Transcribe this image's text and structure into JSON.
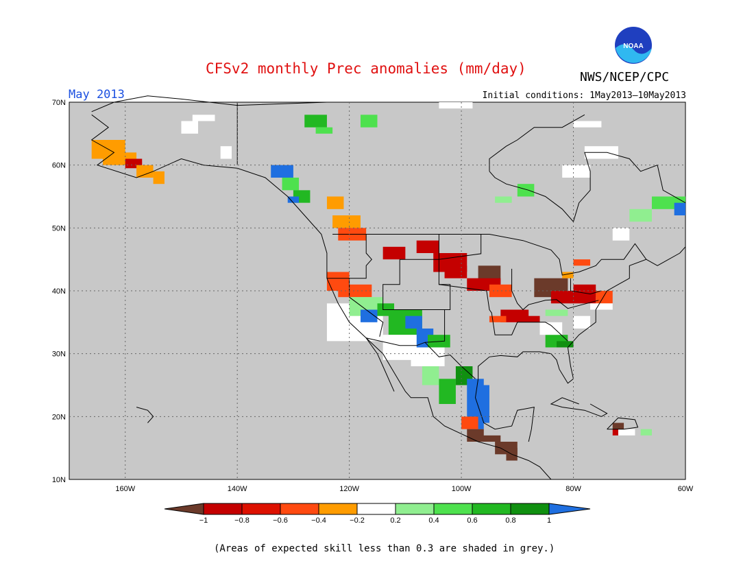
{
  "header": {
    "title": "CFSv2 monthly Prec anomalies (mm/day)",
    "agency": "NWS/NCEP/CPC",
    "logo_text": "NOAA",
    "month": "May 2013",
    "initial_conditions": "Initial conditions: 1May2013–10May2013"
  },
  "map": {
    "lon_range": [
      -170,
      -60
    ],
    "lat_range": [
      10,
      70
    ],
    "lat_ticks": [
      "70N",
      "60N",
      "50N",
      "40N",
      "30N",
      "20N",
      "10N"
    ],
    "lon_ticks": [
      "160W",
      "140W",
      "120W",
      "100W",
      "80W",
      "60W"
    ],
    "background_color": "#c8c8c8"
  },
  "colorbar": {
    "labels": [
      "−1",
      "−0.8",
      "−0.6",
      "−0.4",
      "−0.2",
      "0.2",
      "0.4",
      "0.6",
      "0.8",
      "1"
    ],
    "colors": [
      "#6b3a2a",
      "#c40000",
      "#dd1100",
      "#ff4a10",
      "#ff9c00",
      "#ffffff",
      "#90ee90",
      "#4ee14e",
      "#22b822",
      "#109010",
      "#1f6fe0"
    ]
  },
  "footnote": "(Areas of expected skill less than 0.3 are shaded in grey.)"
}
